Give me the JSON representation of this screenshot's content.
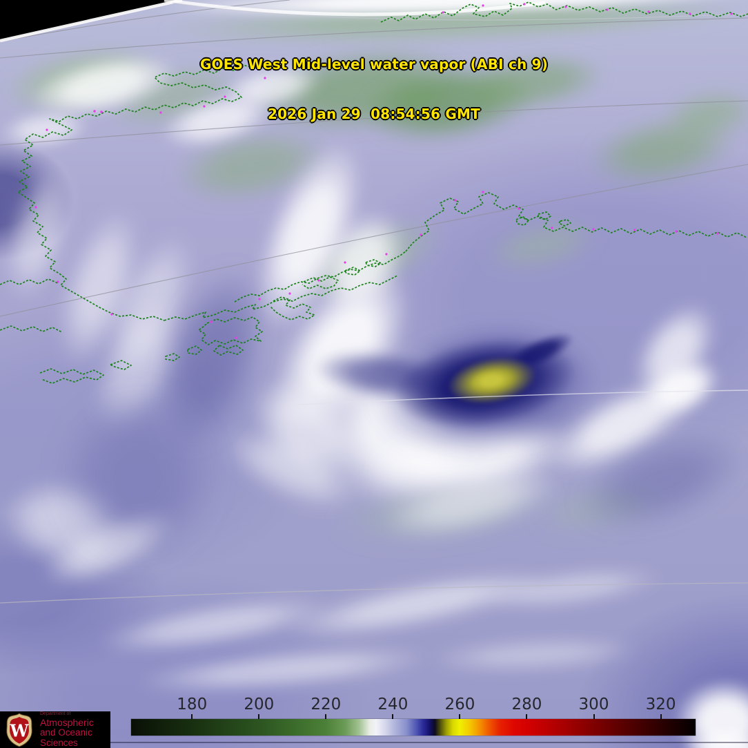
{
  "header": {
    "title_line1": "GOES West Mid-level water vapor (ABI ch 9)",
    "title_line2": "2026 Jan 29  08:54:56 GMT",
    "text_color": "#ffe500"
  },
  "colorbar": {
    "tick_labels": [
      "180",
      "200",
      "220",
      "240",
      "260",
      "280",
      "300",
      "320"
    ],
    "tick_positions_pct": [
      10.79,
      22.66,
      34.52,
      46.38,
      58.24,
      70.11,
      81.97,
      93.83
    ],
    "stops": [
      {
        "pct": 0,
        "color": "#0a0f06"
      },
      {
        "pct": 4.9,
        "color": "#101e0a"
      },
      {
        "pct": 10.8,
        "color": "#182f10"
      },
      {
        "pct": 16.7,
        "color": "#224218"
      },
      {
        "pct": 22.6,
        "color": "#2c5420"
      },
      {
        "pct": 28.5,
        "color": "#3a6a2a"
      },
      {
        "pct": 34.5,
        "color": "#4c8038"
      },
      {
        "pct": 38.0,
        "color": "#6c9c58"
      },
      {
        "pct": 40.4,
        "color": "#a2c292"
      },
      {
        "pct": 42.2,
        "color": "#e6ece2"
      },
      {
        "pct": 43.4,
        "color": "#f2f2f8"
      },
      {
        "pct": 45.2,
        "color": "#d2d4ea"
      },
      {
        "pct": 46.4,
        "color": "#b6bade"
      },
      {
        "pct": 48.8,
        "color": "#8890cc"
      },
      {
        "pct": 50.5,
        "color": "#5058b4"
      },
      {
        "pct": 51.7,
        "color": "#2c2c9a"
      },
      {
        "pct": 52.9,
        "color": "#14116a"
      },
      {
        "pct": 53.8,
        "color": "#0c0a20"
      },
      {
        "pct": 54.7,
        "color": "#4a4a0e"
      },
      {
        "pct": 55.9,
        "color": "#a0a004"
      },
      {
        "pct": 57.0,
        "color": "#d8d800"
      },
      {
        "pct": 58.2,
        "color": "#f0f000"
      },
      {
        "pct": 60.0,
        "color": "#f4c800"
      },
      {
        "pct": 61.8,
        "color": "#f49000"
      },
      {
        "pct": 63.6,
        "color": "#ee5200"
      },
      {
        "pct": 65.4,
        "color": "#e62000"
      },
      {
        "pct": 67.8,
        "color": "#de0700"
      },
      {
        "pct": 70.1,
        "color": "#d40000"
      },
      {
        "pct": 76.0,
        "color": "#ac0000"
      },
      {
        "pct": 81.9,
        "color": "#800000"
      },
      {
        "pct": 87.9,
        "color": "#540000"
      },
      {
        "pct": 93.8,
        "color": "#2c0000"
      },
      {
        "pct": 100,
        "color": "#020000"
      }
    ]
  },
  "logo": {
    "dept_line": "Department of",
    "line1": "Atmospheric",
    "line2": "and Oceanic Sciences",
    "monogram": "W",
    "background": "#000000",
    "text_color": "#c21240",
    "shield_red": "#b01217",
    "shield_gold": "#d8c28a"
  },
  "map_overlay": {
    "coastline_color": "#1a811a",
    "graticule_color": "#8f8f9a",
    "city_marker_color": "#ea3cea",
    "space_color": "#000000"
  }
}
